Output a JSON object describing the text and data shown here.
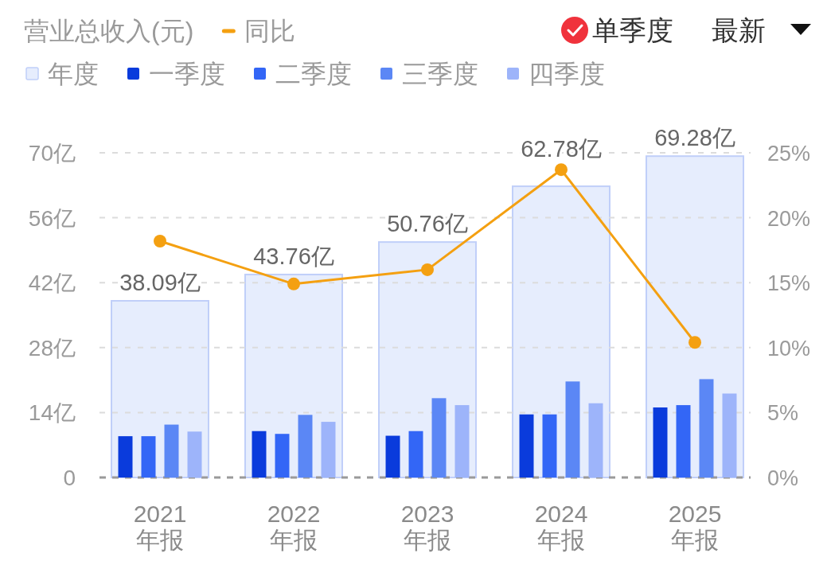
{
  "chart_data": {
    "type": "bar",
    "title": "营业总收入(元)",
    "categories": [
      "2021\n年报",
      "2022\n年报",
      "2023\n年报",
      "2024\n年报",
      "2025\n年报"
    ],
    "series": [
      {
        "name": "年度",
        "color": "#e6edfd",
        "values": [
          38.09,
          43.76,
          50.76,
          62.78,
          69.28
        ],
        "value_labels": [
          "38.09亿",
          "43.76亿",
          "50.76亿",
          "62.78亿",
          "69.28亿"
        ]
      },
      {
        "name": "一季度",
        "color": "#0a3bdc",
        "values": [
          8.9,
          10.0,
          9.0,
          13.6,
          15.1
        ]
      },
      {
        "name": "二季度",
        "color": "#3366f6",
        "values": [
          8.9,
          9.4,
          10.0,
          13.6,
          15.6
        ]
      },
      {
        "name": "三季度",
        "color": "#5b87f5",
        "values": [
          11.4,
          13.5,
          17.1,
          20.7,
          21.2
        ]
      },
      {
        "name": "四季度",
        "color": "#9db4fa",
        "values": [
          9.9,
          12.0,
          15.6,
          16.0,
          18.1
        ]
      },
      {
        "name": "同比",
        "type": "line",
        "axis": "y2",
        "color": "#f4a011",
        "marker": "circle",
        "values": [
          18.2,
          14.9,
          16.0,
          23.7,
          10.4
        ]
      }
    ],
    "ylim": [
      0,
      70
    ],
    "yticks": [
      0,
      {
        "value": 14,
        "label": "14亿"
      },
      {
        "value": 28,
        "label": "28亿"
      },
      {
        "value": 42,
        "label": "42亿"
      },
      {
        "value": 56,
        "label": "56亿"
      },
      {
        "value": 70,
        "label": "70亿"
      }
    ],
    "y2lim": [
      0,
      25
    ],
    "y2ticks": [
      {
        "value": 0,
        "label": "0%"
      },
      {
        "value": 5,
        "label": "5%"
      },
      {
        "value": 10,
        "label": "10%"
      },
      {
        "value": 15,
        "label": "15%"
      },
      {
        "value": 20,
        "label": "20%"
      },
      {
        "value": 25,
        "label": "25%"
      }
    ],
    "grid": "y",
    "legend": "top left",
    "annotations": [
      "单季度",
      "最新"
    ]
  }
}
